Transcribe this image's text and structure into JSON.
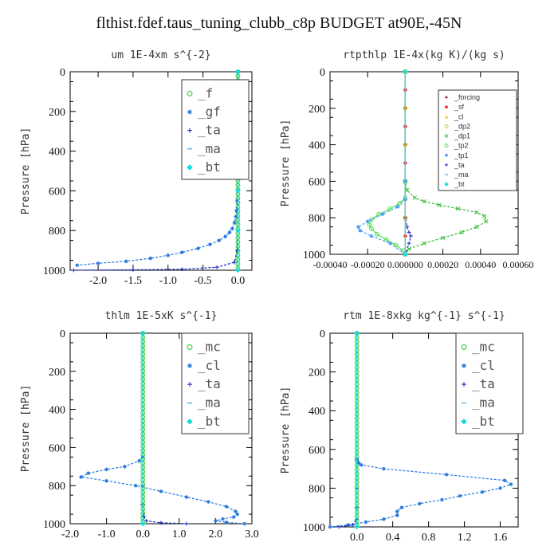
{
  "title": "flthist.fdef.taus_tuning_clubb_c8p  BUDGET at90E,-45N",
  "chart_data": [
    {
      "type": "line",
      "title": "um  1E-4xm s^{-2}",
      "ylabel": "Pressure [hPa]",
      "xlim": [
        -2.4,
        0.2
      ],
      "ylim": [
        1000,
        0
      ],
      "xticks": [
        -2.0,
        -1.5,
        -1.0,
        -0.5,
        0.0
      ],
      "xtick_labels": [
        "-2.0",
        "-1.5",
        "-1.0",
        "-0.5",
        "0.0"
      ],
      "yticks": [
        0,
        200,
        400,
        600,
        800,
        1000
      ],
      "ytick_labels": [
        "0",
        "200",
        "400",
        "600",
        "800",
        "1000"
      ],
      "legend_position": "top-right",
      "series": [
        {
          "name": "_f",
          "color": "#22cc22",
          "marker": "o",
          "x": [
            0,
            0,
            0,
            0,
            0,
            0,
            0,
            0,
            0,
            0,
            0,
            0,
            0,
            0,
            0,
            0,
            0,
            0,
            0,
            0,
            0,
            0,
            0,
            0,
            0,
            0,
            0,
            0,
            0,
            0,
            0,
            0,
            0,
            0,
            0,
            0,
            0,
            0,
            0,
            0,
            0,
            0,
            0,
            0,
            0,
            0
          ],
          "y": [
            0,
            22,
            44,
            66,
            88,
            110,
            132,
            154,
            176,
            198,
            220,
            242,
            264,
            286,
            308,
            330,
            352,
            374,
            396,
            418,
            440,
            462,
            484,
            506,
            528,
            550,
            572,
            594,
            616,
            638,
            660,
            682,
            704,
            726,
            748,
            770,
            792,
            814,
            836,
            858,
            880,
            902,
            924,
            946,
            968,
            990
          ]
        },
        {
          "name": "_gf",
          "color": "#2277dd",
          "marker": "*",
          "x": [
            0,
            0,
            0,
            -0.01,
            -0.02,
            -0.03,
            -0.05,
            -0.08,
            -0.12,
            -0.18,
            -0.27,
            -0.4,
            -0.57,
            -0.8,
            -1.0,
            -1.25,
            -1.6,
            -2.0,
            -2.3
          ],
          "y": [
            0,
            200,
            600,
            650,
            700,
            730,
            760,
            790,
            810,
            830,
            850,
            870,
            890,
            910,
            925,
            940,
            955,
            965,
            975
          ]
        },
        {
          "name": "_ta",
          "color": "#1122cc",
          "marker": "+",
          "x": [
            0,
            0,
            0,
            -0.01,
            -0.05,
            -0.3,
            -0.8,
            -1.5,
            -2.35
          ],
          "y": [
            0,
            600,
            800,
            900,
            960,
            985,
            995,
            998,
            1000
          ]
        },
        {
          "name": "_ma",
          "color": "#33aaee",
          "marker": "-",
          "x": [
            0,
            0,
            0,
            0,
            0,
            0
          ],
          "y": [
            0,
            200,
            400,
            600,
            800,
            1000
          ]
        },
        {
          "name": "_bt",
          "color": "#11dddd",
          "marker": "diamond",
          "x": [
            0,
            0,
            0,
            0,
            0,
            0
          ],
          "y": [
            0,
            200,
            400,
            600,
            800,
            1000
          ]
        }
      ]
    },
    {
      "type": "line",
      "title": "rtpthlp  1E-4x(kg K)/(kg s)",
      "ylabel": "Pressure [hPa]",
      "xlim": [
        -0.0004,
        0.0006
      ],
      "ylim": [
        1000,
        0
      ],
      "xticks": [
        -0.0004,
        -0.0002,
        0.0,
        0.0002,
        0.0004,
        0.0006
      ],
      "xtick_labels": [
        "-0.00040",
        "-0.00020",
        "0.000000",
        "0.00020",
        "0.00040",
        "0.00060"
      ],
      "yticks": [
        0,
        200,
        400,
        600,
        800,
        1000
      ],
      "ytick_labels": [
        "0",
        "200",
        "400",
        "600",
        "800",
        "1000"
      ],
      "legend_position": "top-right",
      "series": [
        {
          "name": "_forcing",
          "color": "#aa1111",
          "marker": "+",
          "x": [
            0,
            0,
            0,
            0,
            0,
            0,
            0,
            0,
            0,
            0,
            0
          ],
          "y": [
            0,
            100,
            200,
            300,
            400,
            500,
            600,
            700,
            800,
            900,
            1000
          ]
        },
        {
          "name": "_sf",
          "color": "#ee2222",
          "marker": "*",
          "x": [
            0,
            0,
            0,
            0,
            0,
            0,
            0,
            0,
            0,
            0,
            0
          ],
          "y": [
            0,
            100,
            200,
            300,
            400,
            500,
            600,
            700,
            800,
            900,
            1000
          ]
        },
        {
          "name": "_cl",
          "color": "#eebb22",
          "marker": "^",
          "x": [
            0,
            0,
            0,
            0,
            0,
            0
          ],
          "y": [
            0,
            200,
            400,
            600,
            800,
            1000
          ]
        },
        {
          "name": "_dp2",
          "color": "#ddcc33",
          "marker": "o",
          "x": [
            0,
            0,
            0,
            0,
            0,
            0
          ],
          "y": [
            0,
            200,
            400,
            600,
            800,
            1000
          ]
        },
        {
          "name": "_dp1",
          "color": "#33bb33",
          "marker": "x",
          "x": [
            0,
            0,
            1e-05,
            5e-05,
            0.0001,
            0.00018,
            0.00028,
            0.00038,
            0.00042,
            0.00043,
            0.00038,
            0.0003,
            0.0002,
            0.0001,
            2e-05,
            0
          ],
          "y": [
            0,
            600,
            650,
            690,
            710,
            730,
            750,
            770,
            790,
            820,
            850,
            880,
            910,
            940,
            970,
            1000
          ]
        },
        {
          "name": "_tp2",
          "color": "#55dd55",
          "marker": "o",
          "x": [
            0,
            0,
            0,
            -3e-05,
            -8e-05,
            -0.00014,
            -0.00018,
            -0.00019,
            -0.00018,
            -0.00015,
            -0.0001,
            -5e-05,
            -1e-05,
            0
          ],
          "y": [
            0,
            600,
            690,
            720,
            750,
            780,
            810,
            840,
            860,
            890,
            920,
            950,
            980,
            1000
          ]
        },
        {
          "name": "_tp1",
          "color": "#4499ff",
          "marker": "*",
          "x": [
            0,
            0,
            0,
            -4e-05,
            -0.00012,
            -0.0002,
            -0.00025,
            -0.00024,
            -0.00018,
            -8e-05,
            0
          ],
          "y": [
            0,
            600,
            700,
            740,
            780,
            820,
            850,
            870,
            900,
            940,
            1000
          ]
        },
        {
          "name": "_ta",
          "color": "#2233cc",
          "marker": "+",
          "x": [
            0,
            0,
            1e-05,
            2e-05,
            3e-05,
            2e-05,
            0
          ],
          "y": [
            0,
            800,
            850,
            880,
            900,
            940,
            1000
          ]
        },
        {
          "name": "_ma",
          "color": "#44aaee",
          "marker": "-",
          "x": [
            0,
            0
          ],
          "y": [
            0,
            1000
          ]
        },
        {
          "name": "_bt",
          "color": "#22dddd",
          "marker": "diamond",
          "x": [
            0,
            0
          ],
          "y": [
            0,
            1000
          ]
        }
      ]
    },
    {
      "type": "line",
      "title": "thlm  1E-5xK s^{-1}",
      "ylabel": "Pressure [hPa]",
      "xlim": [
        -2.0,
        3.0
      ],
      "ylim": [
        1000,
        0
      ],
      "xticks": [
        -2.0,
        -1.0,
        0.0,
        1.0,
        2.0,
        3.0
      ],
      "xtick_labels": [
        "-2.0",
        "-1.0",
        "0.0",
        "1.0",
        "2.0",
        "3.0"
      ],
      "yticks": [
        0,
        200,
        400,
        600,
        800,
        1000
      ],
      "ytick_labels": [
        "0",
        "200",
        "400",
        "600",
        "800",
        "1000"
      ],
      "legend_position": "top-right",
      "series": [
        {
          "name": "_mc",
          "color": "#22cc22",
          "marker": "o",
          "x": [
            0,
            0,
            0,
            0,
            0,
            0,
            0,
            0,
            0,
            0,
            0,
            0,
            0,
            0,
            0,
            0,
            0,
            0,
            0,
            0,
            0,
            0,
            0,
            0,
            0,
            0,
            0,
            0,
            0,
            0,
            0,
            0,
            0,
            0,
            0,
            0,
            0,
            0,
            0,
            0,
            0,
            0,
            0,
            0,
            0,
            0
          ],
          "y": [
            0,
            22,
            44,
            66,
            88,
            110,
            132,
            154,
            176,
            198,
            220,
            242,
            264,
            286,
            308,
            330,
            352,
            374,
            396,
            418,
            440,
            462,
            484,
            506,
            528,
            550,
            572,
            594,
            616,
            638,
            660,
            682,
            704,
            726,
            748,
            770,
            792,
            814,
            836,
            858,
            880,
            902,
            924,
            946,
            968,
            990
          ]
        },
        {
          "name": "_cl",
          "color": "#2277dd",
          "marker": "*",
          "x": [
            0,
            0,
            -0.1,
            -0.5,
            -1.0,
            -1.5,
            -1.7,
            -1.0,
            -0.2,
            0.5,
            1.2,
            1.8,
            2.3,
            2.55,
            2.6,
            2.5,
            2.2,
            2.0,
            2.3,
            2.8
          ],
          "y": [
            0,
            650,
            670,
            700,
            715,
            735,
            755,
            775,
            800,
            830,
            860,
            885,
            910,
            935,
            950,
            965,
            975,
            985,
            993,
            1000
          ]
        },
        {
          "name": "_ta",
          "color": "#1122cc",
          "marker": "+",
          "x": [
            0,
            0,
            0,
            0.02,
            0.1,
            0.5,
            1.2
          ],
          "y": [
            0,
            800,
            900,
            960,
            985,
            995,
            1000
          ]
        },
        {
          "name": "_ma",
          "color": "#33aaee",
          "marker": "-",
          "x": [
            0,
            0
          ],
          "y": [
            0,
            1000
          ]
        },
        {
          "name": "_bt",
          "color": "#11dddd",
          "marker": "diamond",
          "x": [
            0,
            0
          ],
          "y": [
            0,
            1000
          ]
        }
      ]
    },
    {
      "type": "line",
      "title": "rtm  1E-8xkg kg^{-1} s^{-1}",
      "ylabel": "Pressure [hPa]",
      "xlim": [
        -0.3,
        1.8
      ],
      "ylim": [
        1000,
        0
      ],
      "xticks": [
        0.0,
        0.4,
        0.8,
        1.2,
        1.6
      ],
      "xtick_labels": [
        "0.0",
        "0.4",
        "0.8",
        "1.2",
        "1.6"
      ],
      "yticks": [
        0,
        200,
        400,
        600,
        800,
        1000
      ],
      "ytick_labels": [
        "0",
        "200",
        "400",
        "600",
        "800",
        "1000"
      ],
      "legend_position": "top-right",
      "series": [
        {
          "name": "_mc",
          "color": "#22cc22",
          "marker": "o",
          "x": [
            0,
            0,
            0,
            0,
            0,
            0,
            0,
            0,
            0,
            0,
            0,
            0,
            0,
            0,
            0,
            0,
            0,
            0,
            0,
            0,
            0,
            0,
            0,
            0,
            0,
            0,
            0,
            0,
            0,
            0,
            0,
            0,
            0,
            0,
            0,
            0,
            0,
            0,
            0,
            0,
            0,
            0,
            0,
            0,
            0,
            0
          ],
          "y": [
            0,
            22,
            44,
            66,
            88,
            110,
            132,
            154,
            176,
            198,
            220,
            242,
            264,
            286,
            308,
            330,
            352,
            374,
            396,
            418,
            440,
            462,
            484,
            506,
            528,
            550,
            572,
            594,
            616,
            638,
            660,
            682,
            704,
            726,
            748,
            770,
            792,
            814,
            836,
            858,
            880,
            902,
            924,
            946,
            968,
            990
          ]
        },
        {
          "name": "_cl",
          "color": "#2277dd",
          "marker": "*",
          "x": [
            0,
            0,
            0.02,
            0.05,
            0.3,
            1.0,
            1.65,
            1.72,
            1.6,
            1.4,
            1.15,
            0.95,
            0.7,
            0.5,
            0.45,
            0.45,
            0.3,
            0.1,
            -0.1,
            -0.3
          ],
          "y": [
            0,
            650,
            670,
            680,
            700,
            730,
            760,
            780,
            800,
            820,
            840,
            860,
            880,
            900,
            920,
            940,
            960,
            975,
            990,
            1000
          ]
        },
        {
          "name": "_ta",
          "color": "#1122cc",
          "marker": "+",
          "x": [
            0,
            0,
            0,
            0,
            -0.05,
            -0.2
          ],
          "y": [
            0,
            800,
            900,
            960,
            990,
            1000
          ]
        },
        {
          "name": "_ma",
          "color": "#33aaee",
          "marker": "-",
          "x": [
            0,
            0
          ],
          "y": [
            0,
            1000
          ]
        },
        {
          "name": "_bt",
          "color": "#11dddd",
          "marker": "diamond",
          "x": [
            0,
            0
          ],
          "y": [
            0,
            1000
          ]
        }
      ]
    }
  ]
}
